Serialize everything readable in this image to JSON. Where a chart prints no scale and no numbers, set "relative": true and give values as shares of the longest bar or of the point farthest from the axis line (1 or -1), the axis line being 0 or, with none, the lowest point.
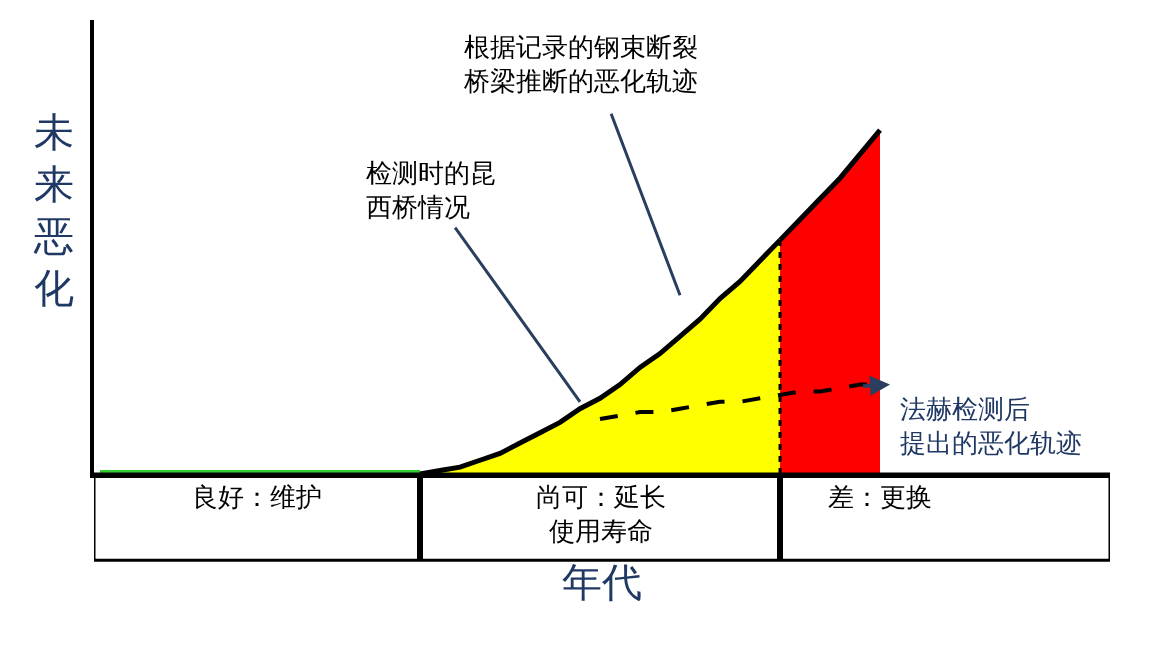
{
  "chart_data": {
    "type": "line",
    "relative": true,
    "xlabel": "年代",
    "ylabel": "未来恶化",
    "categories": [
      null,
      null,
      null,
      null,
      null,
      null,
      null,
      null,
      null,
      null,
      null,
      null,
      null,
      null,
      null,
      null,
      null,
      null,
      null,
      null,
      null,
      null,
      null,
      null,
      null,
      null,
      null,
      null,
      null,
      null,
      null,
      null,
      null,
      null,
      null,
      null,
      null,
      null,
      null,
      null
    ],
    "series": [
      {
        "color": "#33cc33",
        "values": [
          0,
          0,
          0,
          0,
          0,
          0,
          0,
          0,
          0,
          0,
          0,
          0,
          0,
          0,
          0,
          0,
          0,
          null,
          null,
          null,
          null,
          null,
          null,
          null,
          null,
          null,
          null,
          null,
          null,
          null,
          null,
          null,
          null,
          null,
          null,
          null,
          null,
          null,
          null,
          null
        ]
      },
      {
        "type": "area",
        "color": "#ffff00",
        "values": [
          null,
          null,
          null,
          null,
          null,
          null,
          null,
          null,
          null,
          null,
          null,
          null,
          null,
          null,
          null,
          null,
          0,
          0.01,
          0.02,
          0.04,
          0.06,
          0.09,
          0.12,
          0.15,
          0.19,
          0.22,
          0.26,
          0.31,
          0.35,
          0.4,
          0.45,
          0.51,
          0.56,
          0.62,
          0.68,
          null,
          null,
          null,
          null,
          null
        ]
      },
      {
        "type": "area",
        "color": "#ff0000",
        "values": [
          null,
          null,
          null,
          null,
          null,
          null,
          null,
          null,
          null,
          null,
          null,
          null,
          null,
          null,
          null,
          null,
          null,
          null,
          null,
          null,
          null,
          null,
          null,
          null,
          null,
          null,
          null,
          null,
          null,
          null,
          null,
          null,
          null,
          null,
          0.68,
          0.74,
          0.8,
          0.86,
          0.93,
          1
        ]
      },
      {
        "color": "#000000",
        "line_style": "dashed",
        "values": [
          null,
          null,
          null,
          null,
          null,
          null,
          null,
          null,
          null,
          null,
          null,
          null,
          null,
          null,
          null,
          null,
          null,
          null,
          null,
          null,
          null,
          null,
          null,
          null,
          null,
          0.16,
          0.17,
          0.18,
          0.18,
          0.19,
          0.2,
          0.21,
          0.21,
          0.22,
          0.23,
          0.24,
          0.24,
          0.25,
          0.26,
          0.26
        ]
      }
    ],
    "annotations": [
      "良好：维护",
      "尚可：延长使用寿命",
      "差：更换",
      "检测时的昆西桥情况",
      "根据记录的钢束断裂桥梁推断的恶化轨迹",
      "法赫检测后提出的恶化轨迹"
    ],
    "legend": false
  }
}
